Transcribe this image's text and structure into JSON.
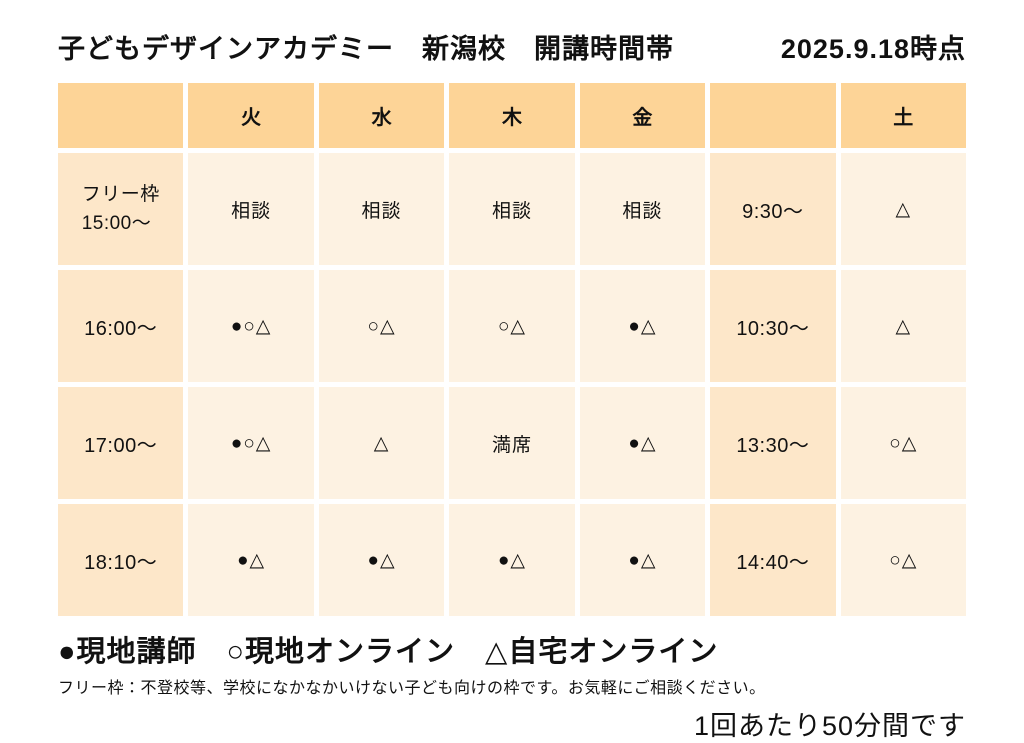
{
  "header": {
    "title": "子どもデザインアカデミー　新潟校　開講時間帯",
    "as_of": "2025.9.18時点"
  },
  "table": {
    "day_headers": [
      "",
      "火",
      "水",
      "木",
      "金",
      "",
      "土"
    ],
    "rows": [
      [
        "フリー枠\n15:00〜",
        "相談",
        "相談",
        "相談",
        "相談",
        "9:30〜",
        "△"
      ],
      [
        "16:00〜",
        "●○△",
        "○△",
        "○△",
        "●△",
        "10:30〜",
        "△"
      ],
      [
        "17:00〜",
        "●○△",
        "△",
        "満席",
        "●△",
        "13:30〜",
        "○△"
      ],
      [
        "18:10〜",
        "●△",
        "●△",
        "●△",
        "●△",
        "14:40〜",
        "○△"
      ]
    ],
    "colors": {
      "header_bg": "#fdd497",
      "time_col_bg": "#fde7c9",
      "data_cell_bg": "#fdf2e2"
    }
  },
  "legend": {
    "text": "●現地講師　○現地オンライン　△自宅オンライン"
  },
  "notes": {
    "free_slot_note": "フリー枠：不登校等、学校になかなかいけない子ども向けの枠です。お気軽にご相談ください。",
    "duration_note": "1回あたり50分間です"
  }
}
